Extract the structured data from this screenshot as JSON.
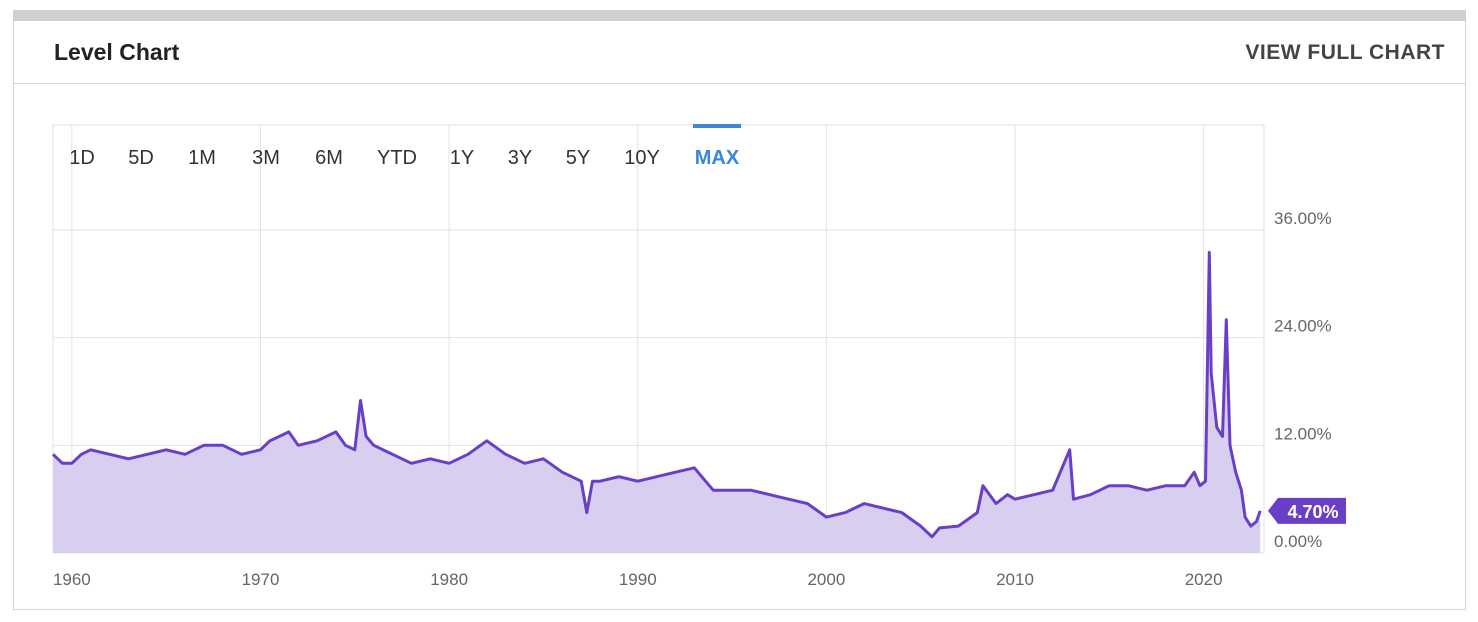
{
  "header": {
    "title": "Level Chart",
    "link": "VIEW FULL CHART"
  },
  "chart_data": {
    "type": "area",
    "range_buttons": [
      "1D",
      "5D",
      "1M",
      "3M",
      "6M",
      "YTD",
      "1Y",
      "3Y",
      "5Y",
      "10Y",
      "MAX"
    ],
    "selected_range": 10,
    "x": [
      1959,
      1959.5,
      1960,
      1960.5,
      1961,
      1962,
      1963,
      1964,
      1965,
      1966,
      1967,
      1968,
      1969,
      1970,
      1970.5,
      1971,
      1971.5,
      1972,
      1973,
      1974,
      1974.5,
      1975,
      1975.3,
      1975.6,
      1976,
      1977,
      1978,
      1979,
      1980,
      1981,
      1982,
      1983,
      1984,
      1985,
      1986,
      1987,
      1987.3,
      1987.6,
      1988,
      1989,
      1990,
      1991,
      1992,
      1993,
      1994,
      1995,
      1996,
      1997,
      1998,
      1999,
      2000,
      2001,
      2002,
      2003,
      2004,
      2005,
      2005.6,
      2006,
      2007,
      2008,
      2008.3,
      2009,
      2009.6,
      2010,
      2011,
      2012,
      2012.9,
      2013.1,
      2014,
      2015,
      2016,
      2017,
      2018,
      2019,
      2019.5,
      2019.8,
      2020.1,
      2020.3,
      2020.4,
      2020.7,
      2021,
      2021.2,
      2021.4,
      2021.7,
      2022,
      2022.2,
      2022.5,
      2022.8,
      2023
    ],
    "values": [
      11,
      10,
      10,
      11,
      11.5,
      11,
      10.5,
      11,
      11.5,
      11,
      12,
      12,
      11,
      11.5,
      12.5,
      13,
      13.5,
      12,
      12.5,
      13.5,
      12,
      11.5,
      17,
      13,
      12,
      11,
      10,
      10.5,
      10,
      11,
      12.5,
      11,
      10,
      10.5,
      9,
      8,
      4.5,
      8,
      8,
      8.5,
      8,
      8.5,
      9,
      9.5,
      7,
      7,
      7,
      6.5,
      6,
      5.5,
      4,
      4.5,
      5.5,
      5,
      4.5,
      3,
      1.8,
      2.8,
      3,
      4.5,
      7.5,
      5.5,
      6.5,
      6,
      6.5,
      7,
      11.5,
      6,
      6.5,
      7.5,
      7.5,
      7,
      7.5,
      7.5,
      9,
      7.5,
      8,
      33.5,
      20,
      14,
      13,
      26,
      12,
      9,
      7,
      4,
      3,
      3.5,
      4.7
    ],
    "last_value": {
      "value": 4.7,
      "label": "4.70%"
    },
    "xlim": [
      1959,
      2023.2
    ],
    "xticks": [
      1960,
      1970,
      1980,
      1990,
      2000,
      2010,
      2020
    ],
    "ylim": [
      0,
      47.7
    ],
    "yticks": [
      {
        "value": 0,
        "label": "0.00%"
      },
      {
        "value": 12,
        "label": "12.00%"
      },
      {
        "value": 24,
        "label": "24.00%"
      },
      {
        "value": 36,
        "label": "36.00%"
      }
    ],
    "color": "#6a3fc8",
    "fill_color": "#d8cff0",
    "accent_color": "#3a86d8",
    "grid": true
  }
}
